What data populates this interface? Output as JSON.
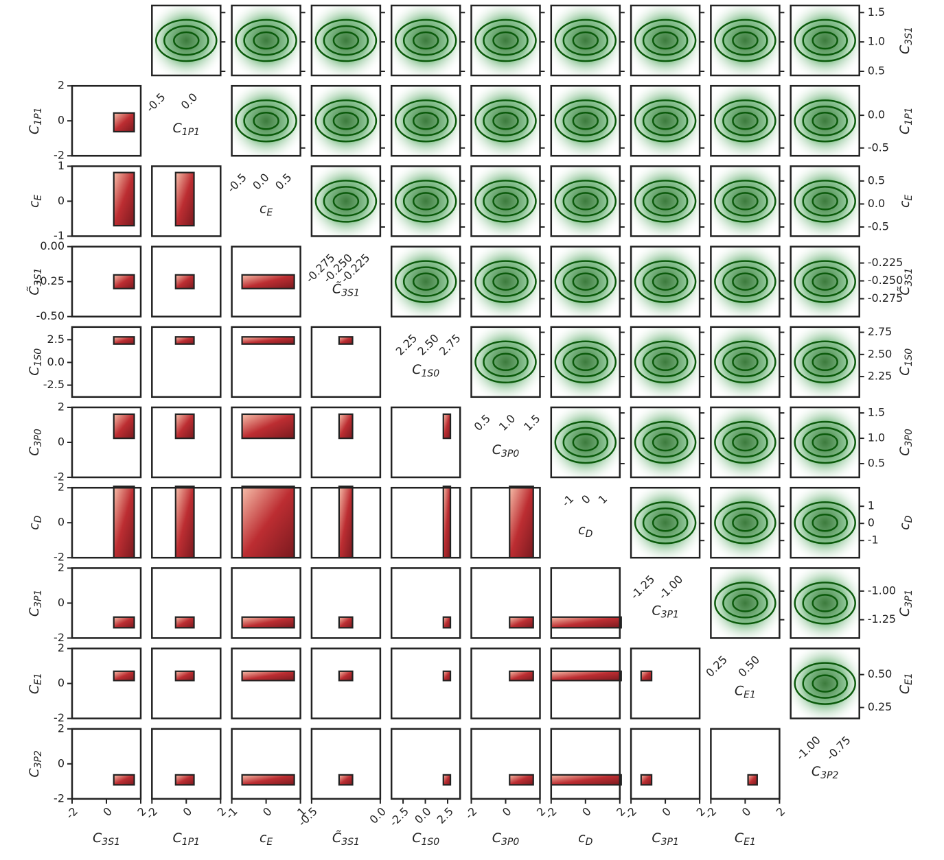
{
  "chart_data": {
    "type": "corner",
    "params": [
      {
        "symbol": "C",
        "sub": "3S1",
        "range": [
          -2,
          2
        ],
        "ticks": [
          -2,
          0,
          2
        ],
        "narrow": [
          0.43,
          1.62
        ],
        "narrow_ticks": [
          0.5,
          {
            "value": 1,
            "label": "1.0"
          },
          1.5
        ]
      },
      {
        "symbol": "C",
        "sub": "1P1",
        "range": [
          -2,
          2
        ],
        "ticks": [
          -2,
          0,
          2
        ],
        "narrow": [
          -0.62,
          0.45
        ],
        "narrow_ticks": [
          -0.5,
          {
            "value": 0,
            "label": "0.0"
          }
        ]
      },
      {
        "symbol": "c",
        "sub": "E",
        "range": [
          -1,
          1
        ],
        "ticks": [
          -1,
          0,
          1
        ],
        "narrow": [
          -0.7,
          0.82
        ],
        "narrow_ticks": [
          -0.5,
          {
            "value": 0,
            "label": "0.0"
          },
          0.5
        ]
      },
      {
        "symbol": "C̃",
        "sub": "3S1",
        "range": [
          -0.5,
          0
        ],
        "ticks": [
          -0.5,
          {
            "value": 0,
            "label": "0.0"
          }
        ],
        "yticks": [
          {
            "value": 0,
            "label": "0.00"
          },
          -0.25,
          {
            "value": -0.5,
            "label": "-0.50"
          }
        ],
        "narrow": [
          -0.3,
          -0.202
        ],
        "narrow_ticks": [
          -0.275,
          {
            "value": -0.25,
            "label": "-0.250"
          },
          -0.225
        ]
      },
      {
        "symbol": "C",
        "sub": "1S0",
        "range": [
          -3.8,
          3.9
        ],
        "ticks": [
          -2.5,
          {
            "value": 0,
            "label": "0.0"
          },
          2.5
        ],
        "narrow": [
          2.02,
          2.81
        ],
        "narrow_ticks": [
          2.25,
          {
            "value": 2.5,
            "label": "2.50"
          },
          2.75
        ]
      },
      {
        "symbol": "C",
        "sub": "3P0",
        "range": [
          -2,
          2
        ],
        "ticks": [
          -2,
          0,
          2
        ],
        "narrow": [
          0.23,
          1.61
        ],
        "narrow_ticks": [
          0.5,
          {
            "value": 1,
            "label": "1.0"
          },
          1.5
        ]
      },
      {
        "symbol": "c",
        "sub": "D",
        "range": [
          -2,
          2
        ],
        "ticks": [
          -2,
          0,
          2
        ],
        "narrow": [
          -2,
          2.08
        ],
        "narrow_ticks": [
          -1,
          0,
          1
        ]
      },
      {
        "symbol": "C",
        "sub": "3P1",
        "range": [
          -2,
          2
        ],
        "ticks": [
          -2,
          0,
          2
        ],
        "narrow": [
          -1.41,
          -0.8
        ],
        "narrow_ticks": [
          -1.25,
          {
            "value": -1,
            "label": "-1.00"
          }
        ]
      },
      {
        "symbol": "C",
        "sub": "E1",
        "range": [
          -2,
          2
        ],
        "ticks": [
          -2,
          0,
          2
        ],
        "narrow": [
          0.167,
          0.698
        ],
        "narrow_ticks": [
          0.25,
          {
            "value": 0.5,
            "label": "0.50"
          }
        ]
      },
      {
        "symbol": "C",
        "sub": "3P2",
        "range": [
          -2,
          2
        ],
        "ticks": [
          -2,
          0,
          2
        ],
        "narrow": [
          -1.2,
          -0.63
        ],
        "narrow_ticks": [
          {
            "value": -1,
            "label": "-1.00"
          },
          -0.75
        ]
      }
    ]
  }
}
